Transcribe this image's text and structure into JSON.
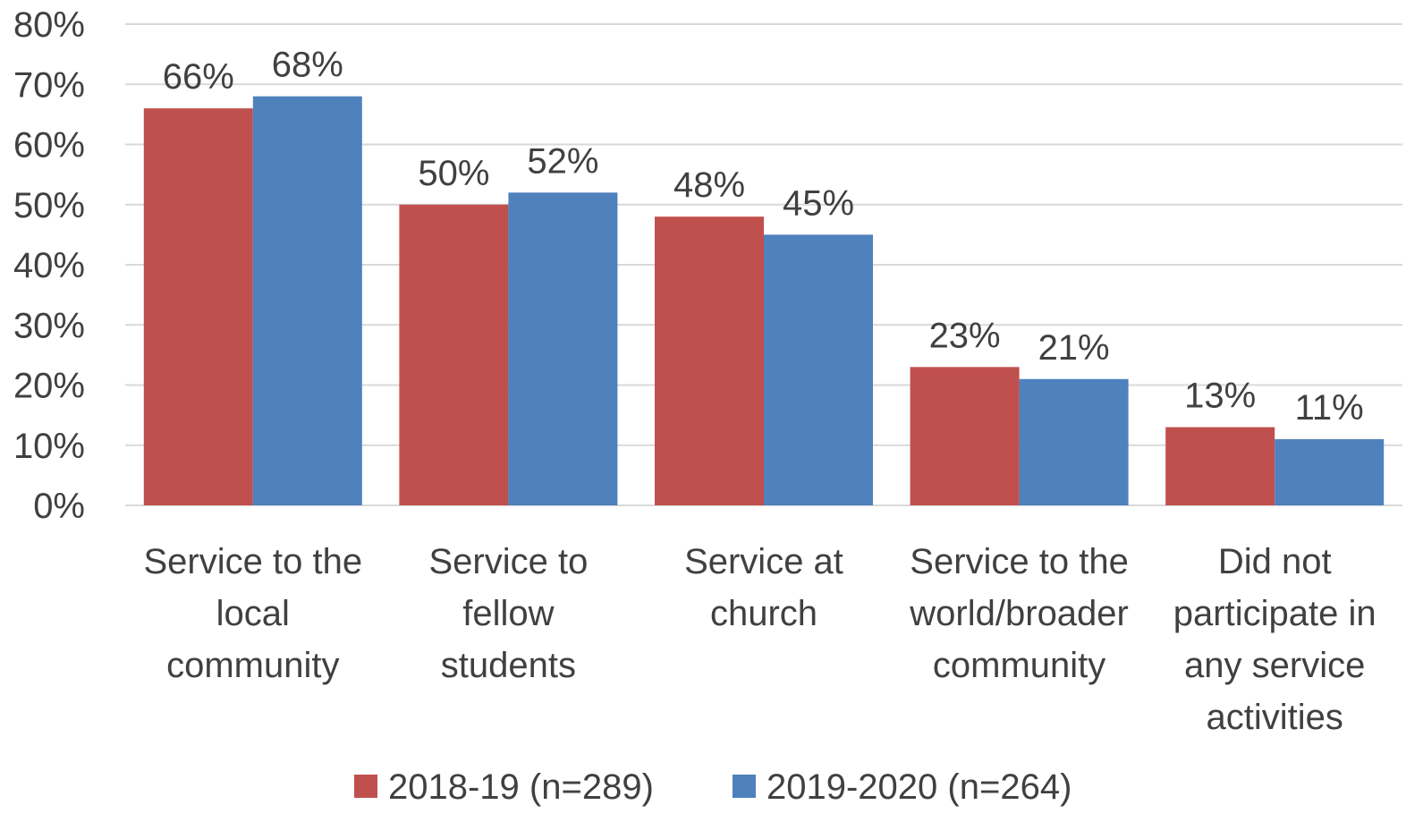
{
  "chart_data": {
    "type": "bar",
    "title": "",
    "xlabel": "",
    "ylabel": "",
    "ylim": [
      0,
      80
    ],
    "yticks": [
      0,
      10,
      20,
      30,
      40,
      50,
      60,
      70,
      80
    ],
    "ytick_labels": [
      "0%",
      "10%",
      "20%",
      "30%",
      "40%",
      "50%",
      "60%",
      "70%",
      "80%"
    ],
    "grid": true,
    "legend_position": "bottom",
    "categories": [
      "Service to the local community",
      "Service to fellow students",
      "Service at church",
      "Service to the world/broader community",
      "Did not participate in any service activities"
    ],
    "category_label_lines": [
      [
        "Service to the",
        "local",
        "community"
      ],
      [
        "Service to",
        "fellow",
        "students"
      ],
      [
        "Service at",
        "church"
      ],
      [
        "Service to the",
        "world/broader",
        "community"
      ],
      [
        "Did not",
        "participate in",
        "any service",
        "activities"
      ]
    ],
    "series": [
      {
        "name": "2018-19 (n=289)",
        "color": "#C0504D",
        "values": [
          66,
          50,
          48,
          23,
          13
        ],
        "labels": [
          "66%",
          "50%",
          "48%",
          "23%",
          "13%"
        ]
      },
      {
        "name": "2019-2020 (n=264)",
        "color": "#4F81BD",
        "values": [
          68,
          52,
          45,
          21,
          11
        ],
        "labels": [
          "68%",
          "52%",
          "45%",
          "21%",
          "11%"
        ]
      }
    ]
  }
}
